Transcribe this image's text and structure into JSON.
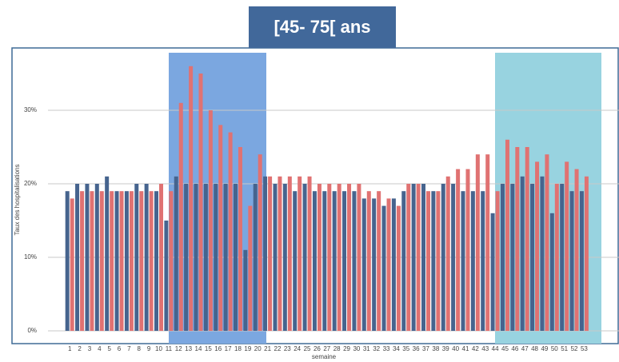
{
  "chart_data": {
    "type": "bar",
    "title": "[45- 75[ ans",
    "xlabel": "semaine",
    "ylabel": "Taux des hospitalisations",
    "categories": [
      "1",
      "2",
      "3",
      "4",
      "5",
      "6",
      "7",
      "8",
      "9",
      "10",
      "11",
      "12",
      "13",
      "14",
      "15",
      "16",
      "17",
      "18",
      "19",
      "20",
      "21",
      "22",
      "23",
      "24",
      "25",
      "26",
      "27",
      "28",
      "29",
      "30",
      "31",
      "32",
      "33",
      "34",
      "35",
      "36",
      "37",
      "38",
      "39",
      "40",
      "41",
      "42",
      "43",
      "44",
      "45",
      "46",
      "47",
      "48",
      "49",
      "50",
      "51",
      "52",
      "53"
    ],
    "series": [
      {
        "color": "#46648e",
        "values": [
          19,
          20,
          20,
          20,
          21,
          19,
          19,
          20,
          20,
          19,
          15,
          21,
          20,
          20,
          20,
          20,
          20,
          20,
          11,
          20,
          21,
          20,
          20,
          19,
          20,
          19,
          19,
          19,
          19,
          19,
          18,
          18,
          17,
          18,
          19,
          20,
          20,
          19,
          20,
          20,
          19,
          19,
          19,
          16,
          20,
          20,
          21,
          20,
          21,
          16,
          20,
          19,
          19
        ]
      },
      {
        "color": "#e07272",
        "values": [
          18,
          19,
          19,
          19,
          19,
          19,
          19,
          19,
          19,
          20,
          19,
          31,
          36,
          35,
          30,
          28,
          27,
          25,
          17,
          24,
          21,
          21,
          21,
          21,
          21,
          20,
          20,
          20,
          20,
          20,
          19,
          19,
          18,
          17,
          20,
          20,
          19,
          19,
          21,
          22,
          22,
          24,
          24,
          19,
          26,
          25,
          25,
          23,
          24,
          20,
          23,
          22,
          21
        ]
      }
    ],
    "ylim": [
      0,
      38
    ],
    "yticks": [
      {
        "value": 0,
        "label": "0%"
      },
      {
        "value": 10,
        "label": "10%"
      },
      {
        "value": 20,
        "label": "20%"
      },
      {
        "value": 30,
        "label": "30%"
      }
    ],
    "grid": true
  }
}
